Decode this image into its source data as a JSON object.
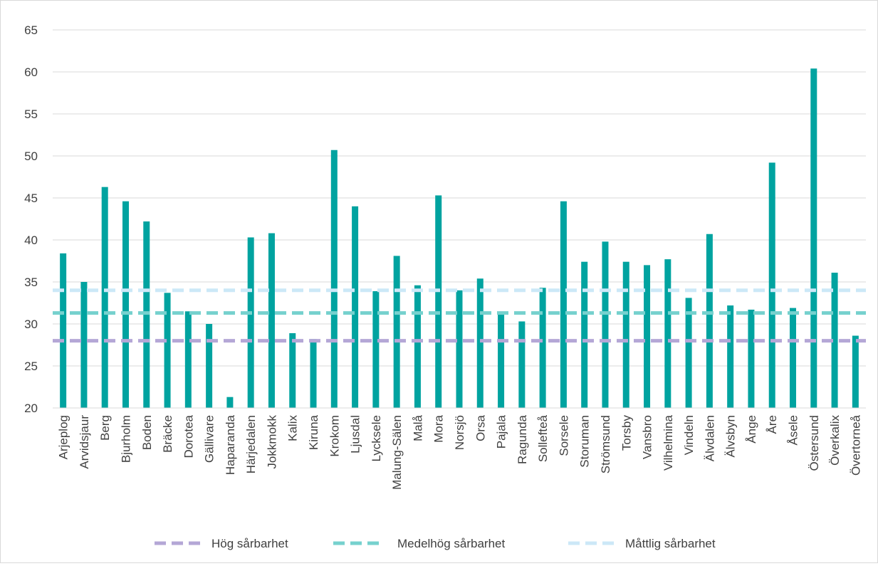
{
  "chart_data": {
    "type": "bar",
    "categories": [
      "Arjeplog",
      "Arvidsjaur",
      "Berg",
      "Bjurholm",
      "Boden",
      "Bräcke",
      "Dorotea",
      "Gällivare",
      "Haparanda",
      "Härjedalen",
      "Jokkmokk",
      "Kalix",
      "Kiruna",
      "Krokom",
      "Ljusdal",
      "Lycksele",
      "Malung-Sälen",
      "Malå",
      "Mora",
      "Norsjö",
      "Orsa",
      "Pajala",
      "Ragunda",
      "Sollefteå",
      "Sorsele",
      "Storuman",
      "Strömsund",
      "Torsby",
      "Vansbro",
      "Vilhelmina",
      "Vindeln",
      "Älvdalen",
      "Älvsbyn",
      "Ånge",
      "Åre",
      "Åsele",
      "Östersund",
      "Överkalix",
      "Övertorneå"
    ],
    "values": [
      38.4,
      35.0,
      46.3,
      44.6,
      42.2,
      33.7,
      31.5,
      30.0,
      21.3,
      40.3,
      40.8,
      28.9,
      28.2,
      50.7,
      44.0,
      33.9,
      38.1,
      34.6,
      45.3,
      34.0,
      35.4,
      31.3,
      30.3,
      34.3,
      44.6,
      37.4,
      39.8,
      37.4,
      37.0,
      37.7,
      33.1,
      40.7,
      32.2,
      31.7,
      49.2,
      31.9,
      60.4,
      36.1,
      28.6
    ],
    "ylim": [
      20,
      65
    ],
    "yticks": [
      20,
      25,
      30,
      35,
      40,
      45,
      50,
      55,
      60,
      65
    ],
    "grid": true,
    "bar_color": "#00a3a0",
    "thresholds": [
      {
        "name": "Hög sårbarhet",
        "value": 28,
        "color": "#b4a7d6"
      },
      {
        "name": "Medelhög sårbarhet",
        "value": 31.3,
        "color": "#76d1ce"
      },
      {
        "name": "Måttlig sårbarhet",
        "value": 34,
        "color": "#cce8f7"
      }
    ],
    "legend_position": "bottom"
  }
}
